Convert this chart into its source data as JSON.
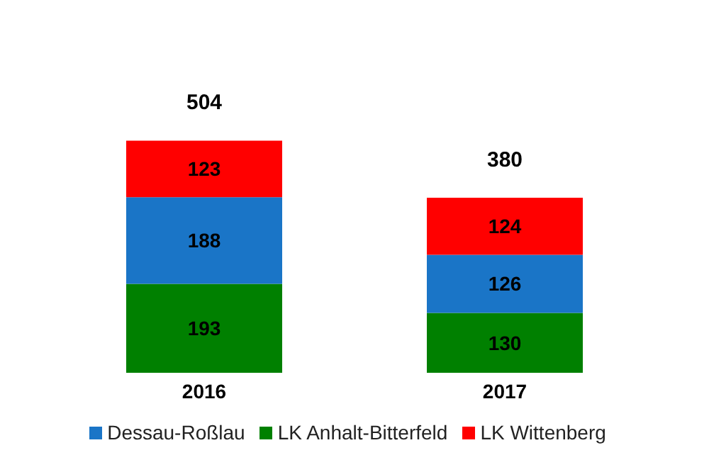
{
  "chart_data": {
    "type": "bar",
    "categories": [
      "2016",
      "2017"
    ],
    "stacked": true,
    "data_labels": true,
    "totals": [
      "504",
      "380"
    ],
    "legend": "bottom",
    "series": [
      {
        "name": "LK Anhalt-Bitterfeld",
        "color": "#008000",
        "values": [
          193,
          130
        ]
      },
      {
        "name": "Dessau-Roßlau",
        "color": "#1a75c7",
        "values": [
          188,
          126
        ]
      },
      {
        "name": "LK Wittenberg",
        "color": "#ff0000",
        "values": [
          123,
          124
        ]
      }
    ]
  }
}
